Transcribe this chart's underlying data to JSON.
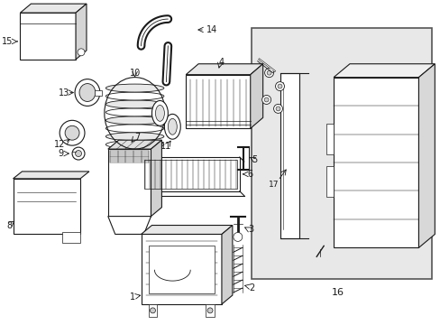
{
  "bg_color": "#ffffff",
  "line_color": "#1a1a1a",
  "inset_bg": "#e8e8e8",
  "fig_width": 4.89,
  "fig_height": 3.6,
  "dpi": 100
}
